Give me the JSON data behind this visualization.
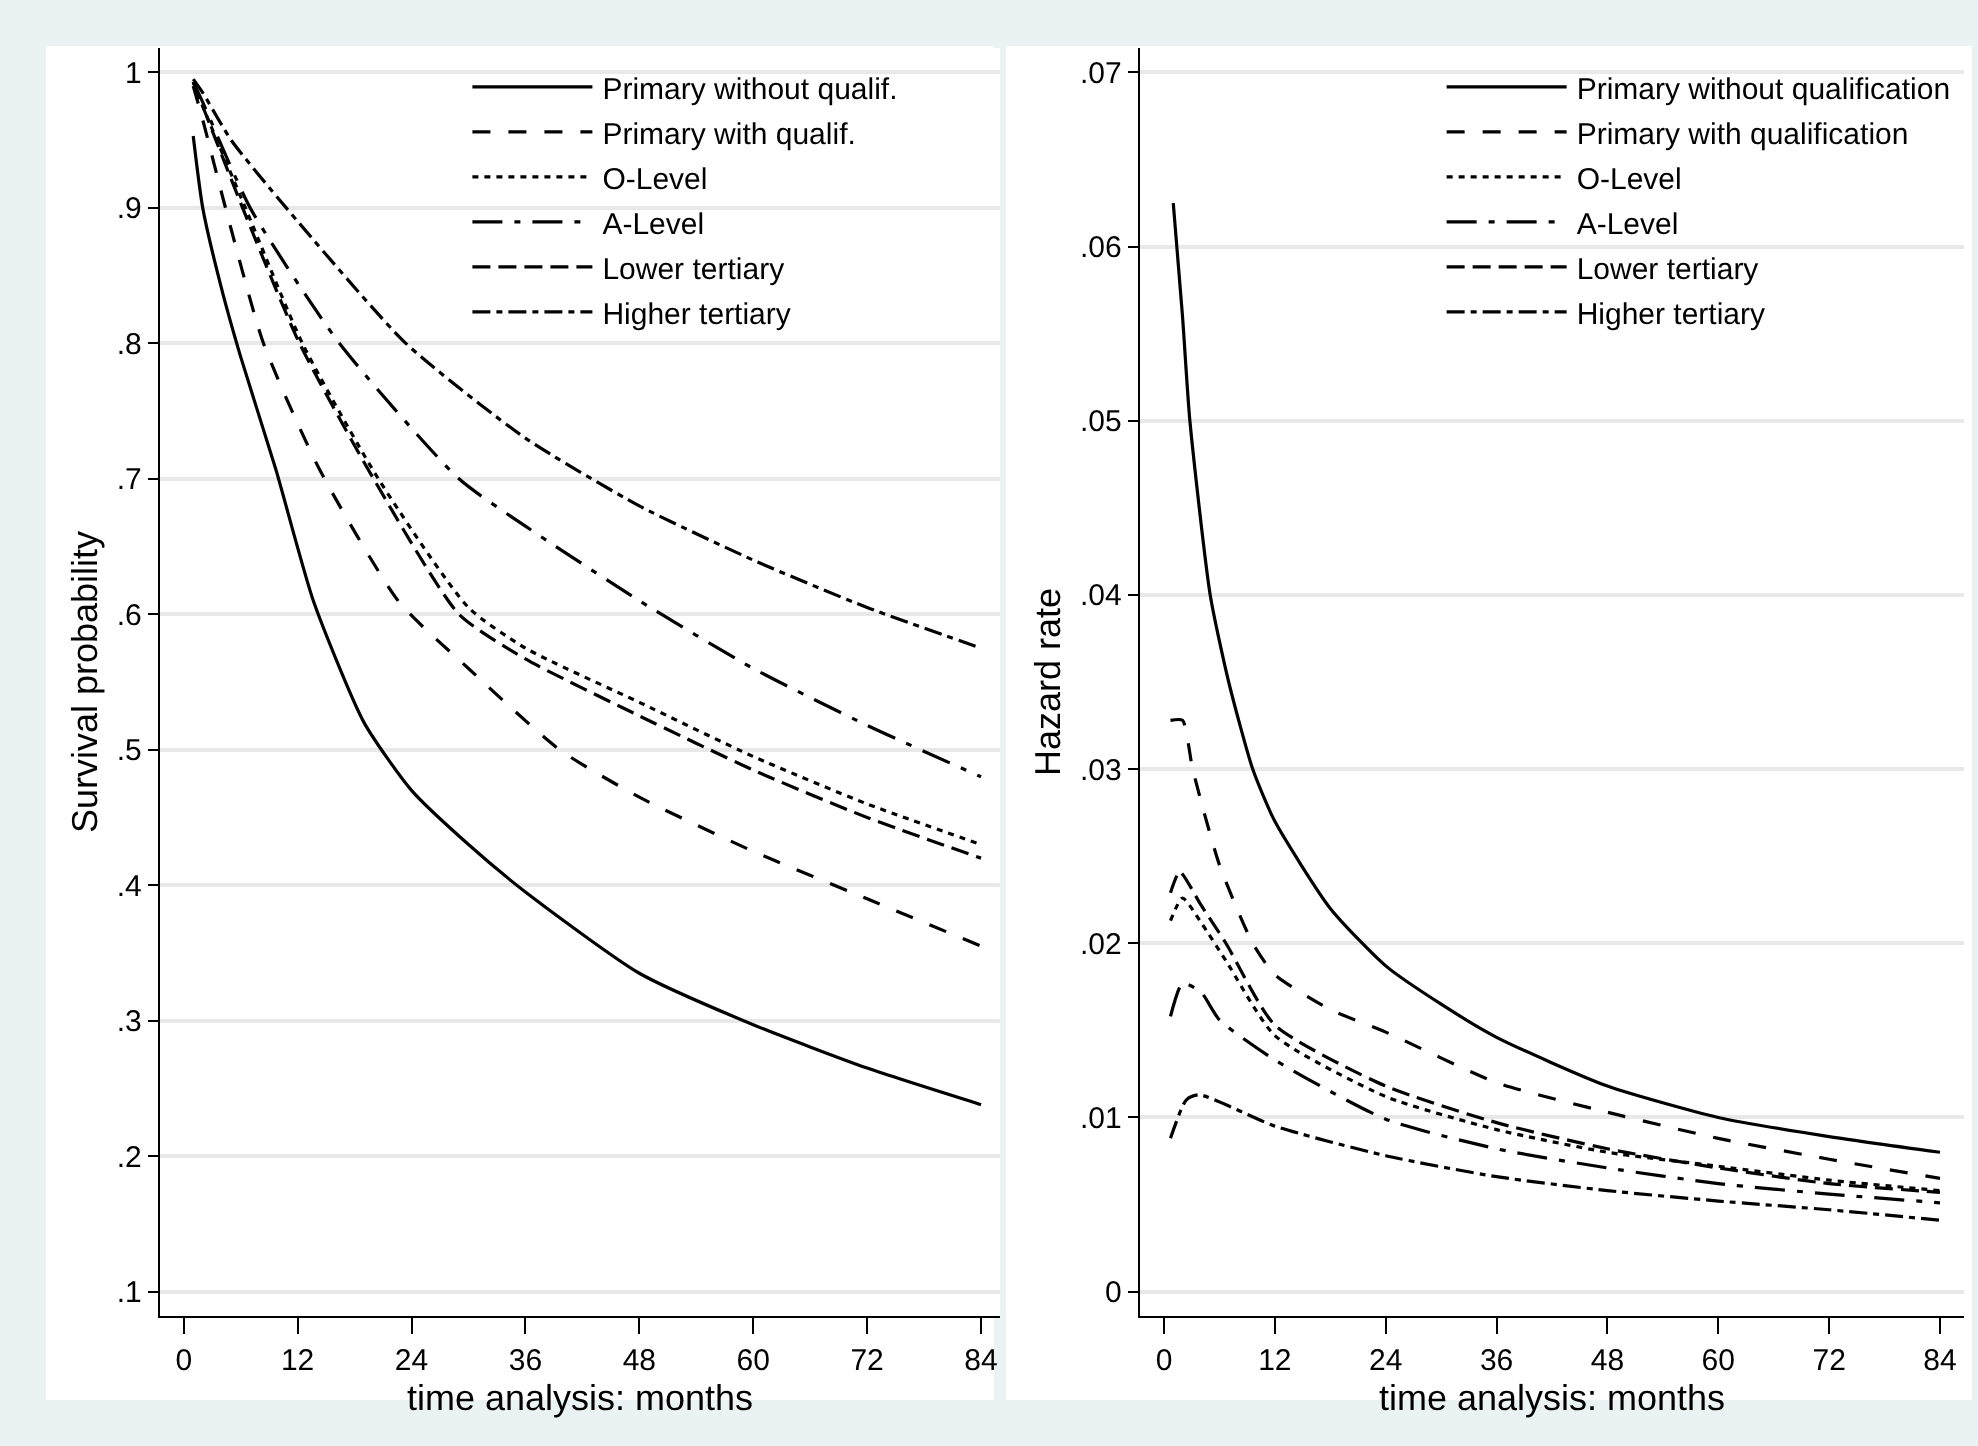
{
  "chart_data": [
    {
      "type": "line",
      "xlabel": "time analysis: months",
      "ylabel": "Survival probability",
      "xlim": [
        -2.5,
        86
      ],
      "xticks": [
        0,
        12,
        24,
        36,
        48,
        60,
        72,
        84
      ],
      "ylim": [
        0.082,
        1.018
      ],
      "yticks": [
        {
          "value": 0.1,
          "label": ".1"
        },
        {
          "value": 0.2,
          "label": ".2"
        },
        {
          "value": 0.3,
          "label": ".3"
        },
        {
          "value": 0.4,
          "label": ".4"
        },
        {
          "value": 0.5,
          "label": ".5"
        },
        {
          "value": 0.6,
          "label": ".6"
        },
        {
          "value": 0.7,
          "label": ".7"
        },
        {
          "value": 0.8,
          "label": ".8"
        },
        {
          "value": 0.9,
          "label": ".9"
        },
        {
          "value": 1,
          "label": "1"
        }
      ],
      "grid": "y",
      "legend": "top right",
      "marker": "none",
      "series": [
        {
          "name": "Primary without qualif.",
          "color": "#000000",
          "line_style": "solid",
          "x": [
            1,
            2,
            4,
            6,
            9.7,
            13.7,
            19,
            24,
            30,
            36,
            48,
            60,
            72,
            84
          ],
          "values": [
            0.953,
            0.9,
            0.84,
            0.79,
            0.707,
            0.609,
            0.52,
            0.47,
            0.43,
            0.395,
            0.335,
            0.297,
            0.265,
            0.238
          ]
        },
        {
          "name": "Primary with qualif.",
          "color": "#000000",
          "line_style": "dashed",
          "x": [
            1,
            2,
            4.4,
            8.4,
            14.3,
            22.7,
            30,
            39.6,
            48,
            60,
            72,
            84
          ],
          "values": [
            0.99,
            0.965,
            0.9,
            0.8,
            0.707,
            0.609,
            0.56,
            0.5,
            0.465,
            0.425,
            0.39,
            0.355
          ]
        },
        {
          "name": "O-Level",
          "color": "#000000",
          "line_style": "dotted",
          "x": [
            1,
            2,
            6.5,
            12.5,
            20.5,
            30,
            36,
            48,
            60,
            72,
            84
          ],
          "values": [
            0.993,
            0.975,
            0.9,
            0.8,
            0.7,
            0.605,
            0.575,
            0.535,
            0.495,
            0.46,
            0.43
          ]
        },
        {
          "name": "A-Level",
          "color": "#000000",
          "line_style": "longdashdot",
          "x": [
            1,
            2,
            7,
            16.4,
            29,
            36,
            48,
            60,
            72,
            84
          ],
          "values": [
            0.993,
            0.978,
            0.9,
            0.8,
            0.7,
            0.665,
            0.61,
            0.56,
            0.518,
            0.48
          ]
        },
        {
          "name": "Lower tertiary",
          "color": "#000000",
          "line_style": "longdash",
          "x": [
            1,
            2,
            6.2,
            12.2,
            20,
            29,
            36,
            48,
            60,
            72,
            84
          ],
          "values": [
            0.993,
            0.975,
            0.9,
            0.8,
            0.7,
            0.6,
            0.567,
            0.525,
            0.485,
            0.45,
            0.42
          ]
        },
        {
          "name": "Higher tertiary",
          "color": "#000000",
          "line_style": "dashdot",
          "x": [
            1,
            2,
            5,
            10.8,
            23.4,
            36,
            48,
            60,
            72,
            84
          ],
          "values": [
            0.995,
            0.985,
            0.95,
            0.9,
            0.8,
            0.73,
            0.68,
            0.64,
            0.605,
            0.575
          ]
        }
      ]
    },
    {
      "type": "line",
      "xlabel": "time analysis: months",
      "ylabel": "Hazard rate",
      "xlim": [
        -2.6,
        86.6
      ],
      "xticks": [
        0,
        12,
        24,
        36,
        48,
        60,
        72,
        84
      ],
      "ylim": [
        -0.0014,
        0.0714
      ],
      "yticks": [
        {
          "value": 0,
          "label": "0"
        },
        {
          "value": 0.01,
          "label": ".01"
        },
        {
          "value": 0.02,
          "label": ".02"
        },
        {
          "value": 0.03,
          "label": ".03"
        },
        {
          "value": 0.04,
          "label": ".04"
        },
        {
          "value": 0.05,
          "label": ".05"
        },
        {
          "value": 0.06,
          "label": ".06"
        },
        {
          "value": 0.07,
          "label": ".07"
        }
      ],
      "grid": "y",
      "legend": "top right",
      "marker": "none",
      "series": [
        {
          "name": "Primary without qualification",
          "color": "#000000",
          "line_style": "solid",
          "x": [
            1,
            2,
            2.8,
            5,
            7,
            9.6,
            12,
            18,
            24,
            30,
            36,
            48,
            60,
            72,
            84
          ],
          "values": [
            0.0625,
            0.056,
            0.05,
            0.04,
            0.035,
            0.03,
            0.027,
            0.022,
            0.0187,
            0.0165,
            0.0146,
            0.0118,
            0.01,
            0.0089,
            0.008
          ]
        },
        {
          "name": "Primary with qualification",
          "color": "#000000",
          "line_style": "dashed",
          "x": [
            0.7,
            2,
            3.1,
            6,
            9.6,
            12,
            18,
            24,
            36,
            48,
            60,
            72,
            84
          ],
          "values": [
            0.0328,
            0.0328,
            0.03,
            0.0245,
            0.02,
            0.0182,
            0.0162,
            0.0149,
            0.012,
            0.0103,
            0.0088,
            0.0076,
            0.0065
          ]
        },
        {
          "name": "O-Level",
          "color": "#000000",
          "line_style": "dotted",
          "x": [
            0.7,
            2,
            4,
            6.7,
            12,
            24,
            36,
            48,
            60,
            72,
            84
          ],
          "values": [
            0.0213,
            0.0226,
            0.0212,
            0.019,
            0.0147,
            0.0112,
            0.0093,
            0.008,
            0.0072,
            0.0064,
            0.0058
          ]
        },
        {
          "name": "A-Level",
          "color": "#000000",
          "line_style": "longdashdot",
          "x": [
            0.7,
            2,
            4,
            6,
            12,
            24,
            36,
            48,
            60,
            72,
            84
          ],
          "values": [
            0.0158,
            0.0177,
            0.0172,
            0.0156,
            0.0133,
            0.0099,
            0.0082,
            0.0071,
            0.0062,
            0.0056,
            0.0051
          ]
        },
        {
          "name": "Lower tertiary",
          "color": "#000000",
          "line_style": "longdash",
          "x": [
            0.7,
            1.7,
            4,
            6.7,
            12,
            24,
            36,
            48,
            60,
            72,
            84
          ],
          "values": [
            0.0229,
            0.0241,
            0.0222,
            0.02,
            0.0153,
            0.0118,
            0.0097,
            0.0082,
            0.0071,
            0.0062,
            0.0057
          ]
        },
        {
          "name": "Higher tertiary",
          "color": "#000000",
          "line_style": "dashdot",
          "x": [
            0.7,
            2.4,
            3.8,
            12,
            24,
            36,
            48,
            60,
            72,
            84
          ],
          "values": [
            0.0088,
            0.011,
            0.0113,
            0.0095,
            0.0078,
            0.0066,
            0.0058,
            0.0052,
            0.0047,
            0.0041
          ]
        }
      ]
    }
  ]
}
